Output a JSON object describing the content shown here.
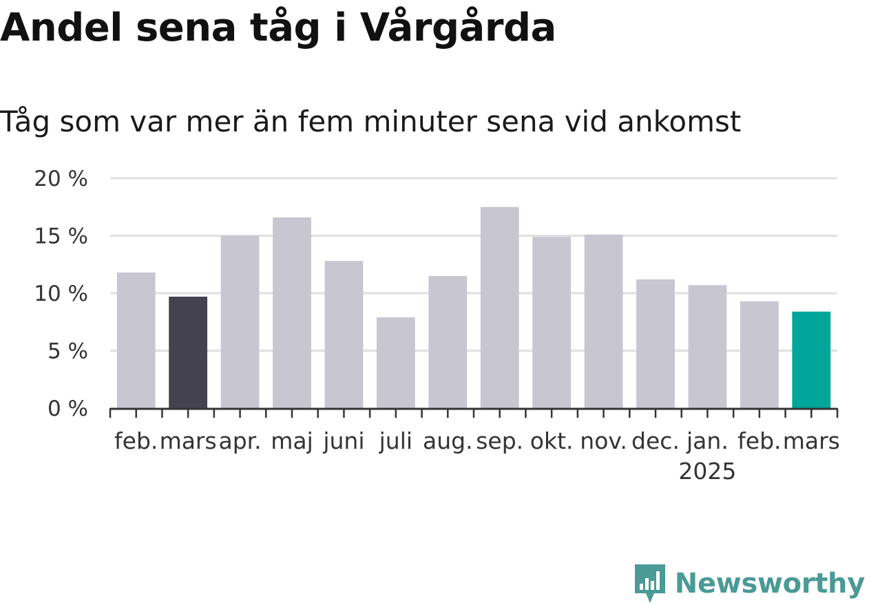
{
  "title": "Andel sena tåg i Vårgårda",
  "subtitle": "Tåg som var mer än fem minuter sena vid ankomst",
  "brand": {
    "name": "Newsworthy",
    "color": "#4a9a96",
    "icon": "newsworthy-logo-icon"
  },
  "colors": {
    "default_bar": "#c8c6d0",
    "highlight_start": "#44424f",
    "highlight_end": "#00a69a",
    "grid": "#e0e0e0",
    "axis": "#333333"
  },
  "chart_data": {
    "type": "bar",
    "categories": [
      "feb.",
      "mars",
      "apr.",
      "maj",
      "juni",
      "juli",
      "aug.",
      "sep.",
      "okt.",
      "nov.",
      "dec.",
      "jan.",
      "feb.",
      "mars"
    ],
    "year_label": {
      "text": "2025",
      "category_index": 11
    },
    "values": [
      11.8,
      9.7,
      15.0,
      16.6,
      12.8,
      7.9,
      11.5,
      17.5,
      14.9,
      15.1,
      11.2,
      10.7,
      9.3,
      8.4
    ],
    "bar_colors": [
      "default",
      "highlight_start",
      "default",
      "default",
      "default",
      "default",
      "default",
      "default",
      "default",
      "default",
      "default",
      "default",
      "default",
      "highlight_end"
    ],
    "y_ticks": [
      "0 %",
      "5 %",
      "10 %",
      "15 %",
      "20 %"
    ],
    "y_tick_values": [
      0,
      5,
      10,
      15,
      20
    ],
    "ylim": [
      0,
      20
    ],
    "grid": true
  }
}
